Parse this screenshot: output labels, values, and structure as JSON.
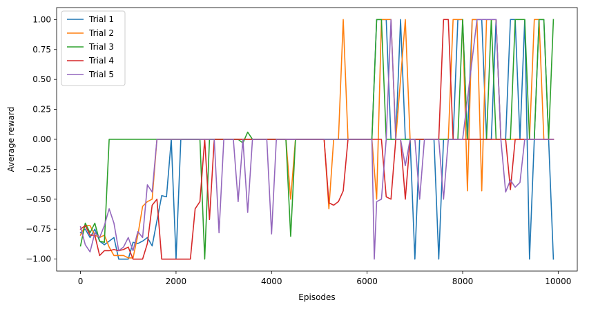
{
  "chart_data": {
    "type": "line",
    "xlabel": "Episodes",
    "ylabel": "Average reward",
    "xlim": [
      -500,
      10400
    ],
    "ylim": [
      -1.1,
      1.1
    ],
    "xticks": [
      0,
      2000,
      4000,
      6000,
      8000,
      10000
    ],
    "xtick_labels": [
      "0",
      "2000",
      "4000",
      "6000",
      "8000",
      "10000"
    ],
    "yticks": [
      -1.0,
      -0.75,
      -0.5,
      -0.25,
      0.0,
      0.25,
      0.5,
      0.75,
      1.0
    ],
    "ytick_labels": [
      "−1.00",
      "−0.75",
      "−0.50",
      "−0.25",
      "0.00",
      "0.25",
      "0.50",
      "0.75",
      "1.00"
    ],
    "grid": false,
    "legend_position": "top-left",
    "series": [
      {
        "name": "Trial 1",
        "color": "#1f77b4",
        "points": [
          [
            0,
            -0.78
          ],
          [
            100,
            -0.75
          ],
          [
            200,
            -0.82
          ],
          [
            300,
            -0.75
          ],
          [
            400,
            -0.85
          ],
          [
            500,
            -0.88
          ],
          [
            600,
            -0.85
          ],
          [
            700,
            -0.82
          ],
          [
            800,
            -1.0
          ],
          [
            1000,
            -1.0
          ],
          [
            1100,
            -0.86
          ],
          [
            1200,
            -0.87
          ],
          [
            1300,
            -0.85
          ],
          [
            1400,
            -0.82
          ],
          [
            1500,
            -0.89
          ],
          [
            1700,
            -0.47
          ],
          [
            1800,
            -0.48
          ],
          [
            1900,
            0.0
          ],
          [
            2000,
            -1.0
          ],
          [
            2100,
            0.0
          ],
          [
            4000,
            0.0
          ],
          [
            6100,
            0.0
          ],
          [
            6200,
            1.0
          ],
          [
            6400,
            1.0
          ],
          [
            6500,
            0.0
          ],
          [
            6600,
            0.0
          ],
          [
            6700,
            1.0
          ],
          [
            6800,
            0.0
          ],
          [
            6900,
            0.0
          ],
          [
            7000,
            -1.0
          ],
          [
            7100,
            0.0
          ],
          [
            7400,
            0.0
          ],
          [
            7500,
            -1.0
          ],
          [
            7600,
            0.0
          ],
          [
            7800,
            0.0
          ],
          [
            7900,
            1.0
          ],
          [
            8000,
            1.0
          ],
          [
            8100,
            0.0
          ],
          [
            8200,
            1.0
          ],
          [
            8400,
            1.0
          ],
          [
            8500,
            0.0
          ],
          [
            8600,
            0.0
          ],
          [
            8700,
            1.0
          ],
          [
            8800,
            0.0
          ],
          [
            8900,
            0.0
          ],
          [
            9000,
            1.0
          ],
          [
            9100,
            1.0
          ],
          [
            9200,
            0.0
          ],
          [
            9300,
            1.0
          ],
          [
            9400,
            -1.0
          ],
          [
            9500,
            0.0
          ],
          [
            9600,
            1.0
          ],
          [
            9700,
            1.0
          ],
          [
            9800,
            0.0
          ],
          [
            9900,
            -1.0
          ]
        ]
      },
      {
        "name": "Trial 2",
        "color": "#ff7f0e",
        "points": [
          [
            0,
            -0.8
          ],
          [
            100,
            -0.72
          ],
          [
            200,
            -0.72
          ],
          [
            300,
            -0.8
          ],
          [
            400,
            -0.82
          ],
          [
            500,
            -0.8
          ],
          [
            600,
            -0.9
          ],
          [
            700,
            -0.97
          ],
          [
            800,
            -0.97
          ],
          [
            900,
            -0.97
          ],
          [
            1000,
            -0.99
          ],
          [
            1100,
            -0.99
          ],
          [
            1200,
            -0.8
          ],
          [
            1300,
            -0.56
          ],
          [
            1400,
            -0.52
          ],
          [
            1500,
            -0.5
          ],
          [
            1600,
            0.0
          ],
          [
            2000,
            0.0
          ],
          [
            3000,
            0.0
          ],
          [
            4000,
            0.0
          ],
          [
            4300,
            0.0
          ],
          [
            4400,
            -0.5
          ],
          [
            4500,
            0.0
          ],
          [
            5000,
            0.0
          ],
          [
            5100,
            0.0
          ],
          [
            5200,
            -0.58
          ],
          [
            5300,
            0.0
          ],
          [
            5400,
            0.0
          ],
          [
            5500,
            1.0
          ],
          [
            5600,
            0.0
          ],
          [
            6000,
            0.0
          ],
          [
            6100,
            0.0
          ],
          [
            6200,
            -0.5
          ],
          [
            6300,
            1.0
          ],
          [
            6400,
            1.0
          ],
          [
            6500,
            1.0
          ],
          [
            6600,
            0.0
          ],
          [
            6800,
            1.0
          ],
          [
            6900,
            0.0
          ],
          [
            7700,
            0.0
          ],
          [
            7800,
            1.0
          ],
          [
            8000,
            1.0
          ],
          [
            8100,
            -0.43
          ],
          [
            8200,
            1.0
          ],
          [
            8300,
            1.0
          ],
          [
            8400,
            -0.43
          ],
          [
            8500,
            1.0
          ],
          [
            8600,
            1.0
          ],
          [
            8700,
            1.0
          ],
          [
            8800,
            0.0
          ],
          [
            9400,
            0.0
          ],
          [
            9500,
            1.0
          ],
          [
            9600,
            1.0
          ],
          [
            9700,
            0.0
          ],
          [
            9900,
            0.0
          ]
        ]
      },
      {
        "name": "Trial 3",
        "color": "#2ca02c",
        "points": [
          [
            0,
            -0.89
          ],
          [
            100,
            -0.7
          ],
          [
            200,
            -0.78
          ],
          [
            300,
            -0.7
          ],
          [
            400,
            -0.85
          ],
          [
            500,
            -0.86
          ],
          [
            600,
            0.0
          ],
          [
            1000,
            0.0
          ],
          [
            2000,
            0.0
          ],
          [
            2500,
            0.0
          ],
          [
            2600,
            -1.0
          ],
          [
            2700,
            0.0
          ],
          [
            3300,
            0.0
          ],
          [
            3400,
            -0.03
          ],
          [
            3500,
            0.06
          ],
          [
            3600,
            0.0
          ],
          [
            4300,
            0.0
          ],
          [
            4400,
            -0.81
          ],
          [
            4500,
            0.0
          ],
          [
            6100,
            0.0
          ],
          [
            6200,
            1.0
          ],
          [
            6300,
            1.0
          ],
          [
            6400,
            0.0
          ],
          [
            7000,
            0.0
          ],
          [
            7900,
            0.0
          ],
          [
            8000,
            1.0
          ],
          [
            8100,
            0.0
          ],
          [
            8500,
            0.0
          ],
          [
            8600,
            1.0
          ],
          [
            8700,
            0.0
          ],
          [
            9000,
            0.0
          ],
          [
            9100,
            1.0
          ],
          [
            9200,
            1.0
          ],
          [
            9300,
            1.0
          ],
          [
            9400,
            0.0
          ],
          [
            9500,
            0.0
          ],
          [
            9600,
            1.0
          ],
          [
            9700,
            1.0
          ],
          [
            9800,
            0.0
          ],
          [
            9900,
            1.0
          ]
        ]
      },
      {
        "name": "Trial 4",
        "color": "#d62728",
        "points": [
          [
            0,
            -0.75
          ],
          [
            100,
            -0.72
          ],
          [
            200,
            -0.8
          ],
          [
            300,
            -0.8
          ],
          [
            400,
            -0.97
          ],
          [
            500,
            -0.93
          ],
          [
            600,
            -0.93
          ],
          [
            700,
            -0.92
          ],
          [
            800,
            -0.93
          ],
          [
            900,
            -0.92
          ],
          [
            1000,
            -0.9
          ],
          [
            1100,
            -1.0
          ],
          [
            1200,
            -1.0
          ],
          [
            1300,
            -1.0
          ],
          [
            1400,
            -0.87
          ],
          [
            1500,
            -0.55
          ],
          [
            1600,
            -0.5
          ],
          [
            1700,
            -1.0
          ],
          [
            2000,
            -1.0
          ],
          [
            2300,
            -1.0
          ],
          [
            2400,
            -0.58
          ],
          [
            2500,
            -0.52
          ],
          [
            2600,
            0.0
          ],
          [
            2700,
            -0.67
          ],
          [
            2800,
            0.0
          ],
          [
            3000,
            0.0
          ],
          [
            4000,
            0.0
          ],
          [
            5000,
            0.0
          ],
          [
            5100,
            0.0
          ],
          [
            5200,
            -0.53
          ],
          [
            5300,
            -0.55
          ],
          [
            5400,
            -0.52
          ],
          [
            5500,
            -0.43
          ],
          [
            5600,
            0.0
          ],
          [
            6000,
            0.0
          ],
          [
            6100,
            0.0
          ],
          [
            6200,
            0.0
          ],
          [
            6300,
            0.0
          ],
          [
            6400,
            -0.48
          ],
          [
            6500,
            -0.5
          ],
          [
            6600,
            0.0
          ],
          [
            6700,
            0.0
          ],
          [
            6800,
            -0.5
          ],
          [
            6900,
            0.0
          ],
          [
            7000,
            0.0
          ],
          [
            7500,
            0.0
          ],
          [
            7600,
            1.0
          ],
          [
            7700,
            1.0
          ],
          [
            7800,
            0.0
          ],
          [
            8900,
            0.0
          ],
          [
            9000,
            -0.42
          ],
          [
            9100,
            0.0
          ],
          [
            9200,
            0.0
          ],
          [
            9900,
            0.0
          ]
        ]
      },
      {
        "name": "Trial 5",
        "color": "#9467bd",
        "points": [
          [
            0,
            -0.73
          ],
          [
            100,
            -0.88
          ],
          [
            200,
            -0.94
          ],
          [
            300,
            -0.78
          ],
          [
            400,
            -0.82
          ],
          [
            500,
            -0.72
          ],
          [
            600,
            -0.58
          ],
          [
            700,
            -0.7
          ],
          [
            800,
            -0.93
          ],
          [
            900,
            -0.9
          ],
          [
            1000,
            -0.82
          ],
          [
            1100,
            -0.93
          ],
          [
            1200,
            -0.77
          ],
          [
            1300,
            -0.82
          ],
          [
            1400,
            -0.38
          ],
          [
            1500,
            -0.44
          ],
          [
            1600,
            0.0
          ],
          [
            2000,
            0.0
          ],
          [
            2800,
            0.0
          ],
          [
            2900,
            -0.78
          ],
          [
            3000,
            0.0
          ],
          [
            3200,
            0.0
          ],
          [
            3300,
            -0.52
          ],
          [
            3400,
            0.0
          ],
          [
            3500,
            -0.61
          ],
          [
            3600,
            0.0
          ],
          [
            3900,
            0.0
          ],
          [
            4000,
            -0.79
          ],
          [
            4100,
            0.0
          ],
          [
            6000,
            0.0
          ],
          [
            6100,
            0.0
          ],
          [
            6150,
            -1.0
          ],
          [
            6200,
            -0.52
          ],
          [
            6300,
            -0.5
          ],
          [
            6400,
            0.0
          ],
          [
            6500,
            1.0
          ],
          [
            6600,
            0.0
          ],
          [
            6700,
            0.0
          ],
          [
            6800,
            -0.22
          ],
          [
            6900,
            0.0
          ],
          [
            7000,
            0.0
          ],
          [
            7100,
            -0.5
          ],
          [
            7200,
            0.0
          ],
          [
            7500,
            0.0
          ],
          [
            7600,
            -0.5
          ],
          [
            7700,
            0.0
          ],
          [
            8000,
            0.0
          ],
          [
            8300,
            1.0
          ],
          [
            8700,
            1.0
          ],
          [
            8800,
            0.0
          ],
          [
            8900,
            -0.44
          ],
          [
            9000,
            -0.34
          ],
          [
            9100,
            -0.4
          ],
          [
            9200,
            -0.36
          ],
          [
            9300,
            0.0
          ],
          [
            9900,
            0.0
          ]
        ]
      }
    ]
  }
}
